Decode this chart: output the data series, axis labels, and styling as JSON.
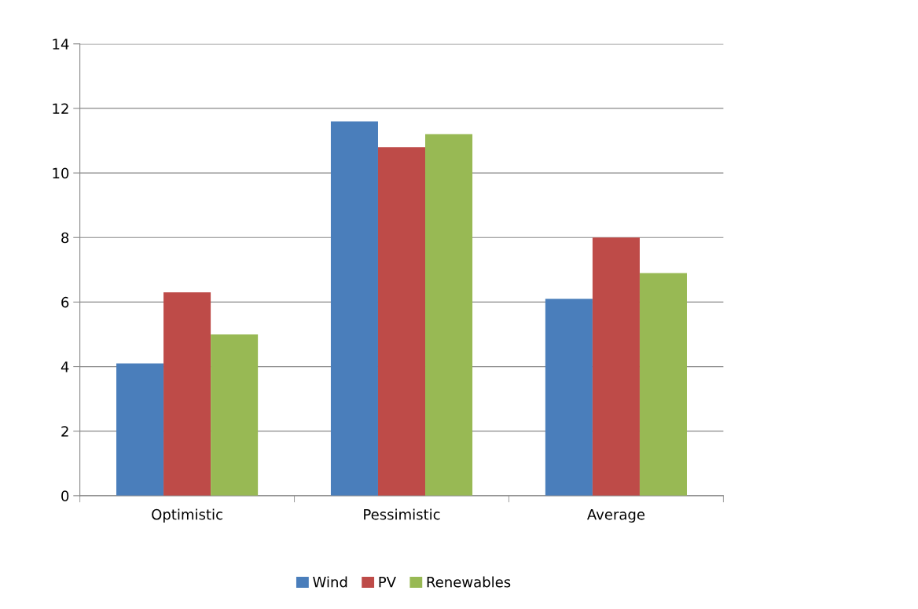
{
  "chart_data": {
    "type": "bar",
    "categories": [
      "Optimistic",
      "Pessimistic",
      "Average"
    ],
    "series": [
      {
        "name": "Wind",
        "color": "#4a7ebb",
        "values": [
          4.1,
          11.6,
          6.1
        ]
      },
      {
        "name": "PV",
        "color": "#be4b48",
        "values": [
          6.3,
          10.8,
          8.0
        ]
      },
      {
        "name": "Renewables",
        "color": "#98b954",
        "values": [
          5.0,
          11.2,
          6.9
        ]
      }
    ],
    "ylim": [
      0,
      14
    ],
    "yticks": [
      0,
      2,
      4,
      6,
      8,
      10,
      12,
      14
    ],
    "grid": "y",
    "legend": "bottom"
  }
}
